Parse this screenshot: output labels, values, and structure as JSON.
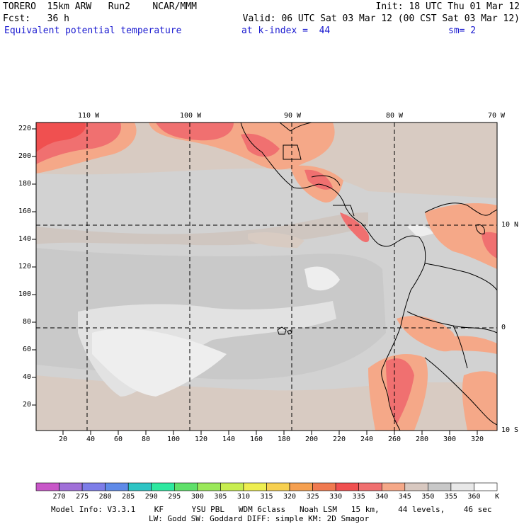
{
  "header": {
    "line1_left": "TORERO  15km ARW   Run2    NCAR/MMM",
    "line1_right": "Init: 18 UTC Thu 01 Mar 12",
    "line2_left": "Fcst:   36 h",
    "line2_right": "Valid: 06 UTC Sat 03 Mar 12 (00 CST Sat 03 Mar 12)",
    "line3_field": "Equivalent potential temperature",
    "line3_level": "at k-index =  44",
    "line3_smooth": "sm= 2"
  },
  "axes": {
    "top_lon_labels": [
      "110 W",
      "100 W",
      "90 W",
      "80 W",
      "70 W"
    ],
    "right_lat_labels": [
      "10 N",
      "0",
      "10 S"
    ],
    "left_y_ticks": [
      "220",
      "200",
      "180",
      "160",
      "140",
      "120",
      "100",
      "80",
      "60",
      "40",
      "20"
    ],
    "bottom_x_ticks": [
      "20",
      "40",
      "60",
      "80",
      "100",
      "120",
      "140",
      "160",
      "180",
      "200",
      "220",
      "240",
      "260",
      "280",
      "300",
      "320"
    ]
  },
  "colorbar": {
    "labels": [
      "270",
      "275",
      "280",
      "285",
      "290",
      "295",
      "300",
      "305",
      "310",
      "315",
      "320",
      "325",
      "330",
      "335",
      "340",
      "345",
      "350",
      "355",
      "360"
    ],
    "unit": "K",
    "colors": [
      "#c857c8",
      "#a070d8",
      "#7d7de8",
      "#5f8ae8",
      "#2ec4c4",
      "#2ee8a0",
      "#5fe06a",
      "#9ae85a",
      "#c8ee50",
      "#eeee50",
      "#f7d050",
      "#f5a050",
      "#f07a50",
      "#f05050",
      "#f07070",
      "#f5a888",
      "#d8c8c0",
      "#c8c8c8",
      "#e8e8e8",
      "#ffffff"
    ]
  },
  "footer": {
    "line1": "Model Info: V3.3.1    KF      YSU PBL   WDM 6class   Noah LSM   15 km,    44 levels,    46 sec",
    "line2": "LW: Godd SW: Goddard DIFF: simple KM: 2D Smagor"
  }
}
